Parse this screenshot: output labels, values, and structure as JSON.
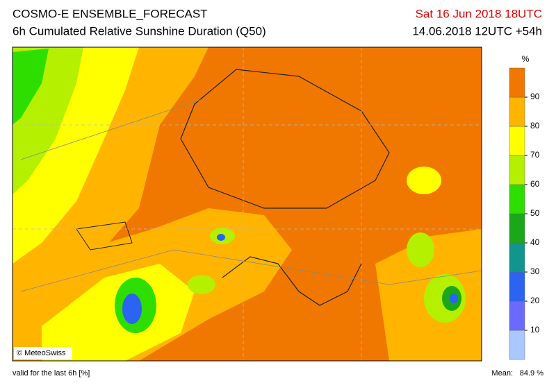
{
  "header": {
    "title": "COSMO-E ENSEMBLE_FORECAST",
    "subtitle": "6h Cumulated Relative Sunshine Duration (Q50)",
    "valid_time": "Sat 16 Jun 2018 18UTC",
    "run": "14.06.2018 12UTC +54h"
  },
  "colorbar": {
    "unit": "%",
    "range": [
      0,
      100
    ],
    "ticks": [
      10,
      20,
      30,
      40,
      50,
      60,
      70,
      80,
      90
    ],
    "colors": [
      "#a8c8ff",
      "#6a6aff",
      "#2a64f0",
      "#10968c",
      "#1aa81a",
      "#2ede00",
      "#b4f000",
      "#ffff00",
      "#ffb400",
      "#f07800"
    ]
  },
  "map": {
    "copyright": "© MeteoSwiss"
  },
  "footer": {
    "note": "valid for the last 6h [%]",
    "mean_label": "Mean:",
    "mean_value": "84.9 %"
  }
}
